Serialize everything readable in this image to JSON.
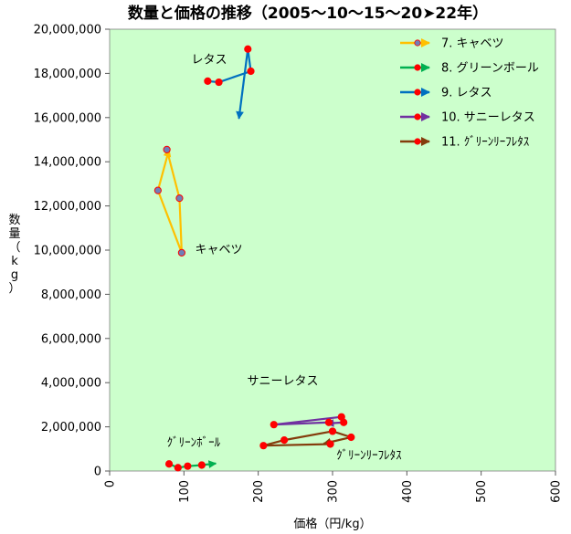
{
  "chart_data": {
    "type": "scatter",
    "title": "数量と価格の推移（2005〜10〜15〜20➤22年）",
    "xlabel": "価格（円/kg）",
    "ylabel": "数量（kg）",
    "xlim": [
      0,
      600
    ],
    "ylim": [
      0,
      20000000
    ],
    "x_ticks": [
      "0",
      "100",
      "200",
      "300",
      "400",
      "500",
      "600"
    ],
    "y_ticks": [
      "0",
      "2,000,000",
      "4,000,000",
      "6,000,000",
      "8,000,000",
      "10,000,000",
      "12,000,000",
      "14,000,000",
      "16,000,000",
      "18,000,000",
      "20,000,000"
    ],
    "background": "#ccffcc",
    "legend_position": "top-right",
    "series": [
      {
        "name": "7. キャベツ",
        "color": "#ffc000",
        "marker_color": "#6f7fb8",
        "points": [
          [
            77,
            14550000
          ],
          [
            94,
            12350000
          ],
          [
            97,
            9880000
          ],
          [
            65,
            12700000
          ],
          [
            80,
            14560000
          ]
        ]
      },
      {
        "name": "8. グリーンボール",
        "color": "#00b050",
        "marker_color": "#ff0000",
        "points": [
          [
            80,
            320000
          ],
          [
            92,
            150000
          ],
          [
            105,
            220000
          ],
          [
            124,
            270000
          ],
          [
            143,
            340000
          ]
        ]
      },
      {
        "name": "9. レタス",
        "color": "#0070c0",
        "marker_color": "#ff0000",
        "points": [
          [
            132,
            17650000
          ],
          [
            147,
            17600000
          ],
          [
            190,
            18100000
          ],
          [
            186,
            19100000
          ],
          [
            174,
            15950000
          ]
        ]
      },
      {
        "name": "10. サニーレタス",
        "color": "#7030a0",
        "marker_color": "#ff0000",
        "points": [
          [
            295,
            2200000
          ],
          [
            221,
            2100000
          ],
          [
            312,
            2450000
          ],
          [
            315,
            2200000
          ],
          [
            292,
            2150000
          ]
        ]
      },
      {
        "name": "11. ｸﾞﾘｰﾝﾘｰﾌﾚﾀｽ",
        "color": "#843c0c",
        "marker_color": "#ff0000",
        "points": [
          [
            297,
            1220000
          ],
          [
            207,
            1150000
          ],
          [
            235,
            1400000
          ],
          [
            300,
            1800000
          ],
          [
            325,
            1530000
          ],
          [
            288,
            1240000
          ]
        ]
      }
    ],
    "annotations": [
      {
        "text": "キャベツ",
        "x": 115,
        "y": 9850000
      },
      {
        "text": "レタス",
        "x": 110,
        "y": 18450000
      },
      {
        "text": "サニーレタス",
        "x": 185,
        "y": 3900000
      },
      {
        "text": "ｸﾞﾘｰﾝﾎﾞｰﾙ",
        "x": 77,
        "y": 1120000
      },
      {
        "text": "ｸﾞﾘｰﾝﾘｰﾌﾚﾀｽ",
        "x": 305,
        "y": 530000
      }
    ]
  }
}
